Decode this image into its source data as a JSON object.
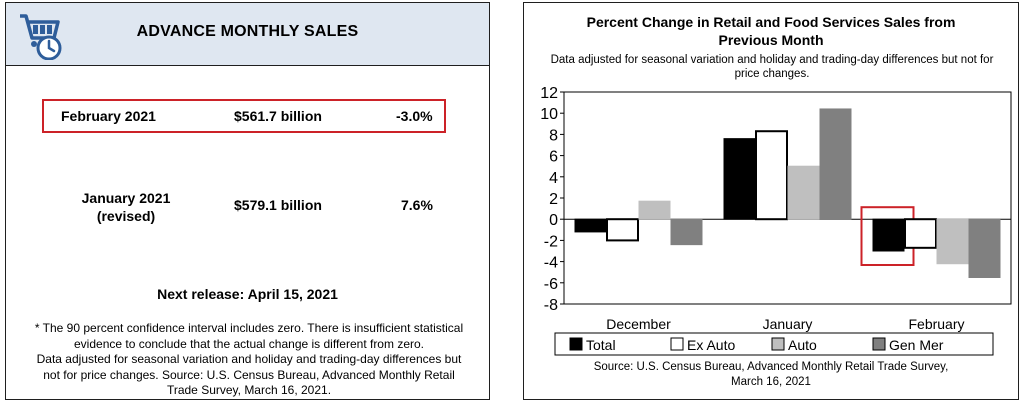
{
  "left": {
    "title": "ADVANCE MONTHLY SALES",
    "rows": [
      {
        "period": "February 2021",
        "value": "$561.7 billion",
        "change": "-3.0%"
      },
      {
        "period_line1": "January 2021",
        "period_line2": "(revised)",
        "value": "$579.1 billion",
        "change": "7.6%"
      }
    ],
    "next_release": "Next release: April 15, 2021",
    "footnote_lines": [
      "* The 90 percent confidence interval includes zero. There is insufficient statistical",
      "evidence to conclude that the actual change is different from zero.",
      "Data adjusted for seasonal variation and holiday and trading-day differences but",
      "not for price changes. Source: U.S. Census Bureau, Advanced Monthly Retail",
      "Trade Survey, March 16, 2021."
    ],
    "highlight_color": "#cc2228",
    "header_color": "#dfe7f1",
    "logo_icon": "shopping-cart-clock-icon"
  },
  "chart_data": {
    "type": "bar",
    "title_line1": "Percent Change in Retail and Food Services Sales from",
    "title_line2": "Previous Month",
    "subtitle_line1": "Data adjusted for seasonal variation and holiday and trading-day differences but not for",
    "subtitle_line2": "price changes.",
    "categories": [
      "December",
      "January",
      "February"
    ],
    "series": [
      {
        "name": "Total",
        "values": [
          -1.2,
          7.6,
          -3.0
        ],
        "fill": "#000000"
      },
      {
        "name": "Ex Auto",
        "values": [
          -2.0,
          8.3,
          -2.7
        ],
        "fill": "#ffffff"
      },
      {
        "name": "Auto",
        "values": [
          1.7,
          5.0,
          -4.2
        ],
        "fill": "#bfbfbf"
      },
      {
        "name": "Gen Mer",
        "values": [
          -2.4,
          10.4,
          -5.5
        ],
        "fill": "#808080"
      }
    ],
    "yticks": [
      "12",
      "10",
      "8",
      "6",
      "4",
      "2",
      "0",
      "-2",
      "-4",
      "-6",
      "-8"
    ],
    "ylim": [
      -8,
      12
    ],
    "xlabel": "",
    "ylabel": "",
    "legend_position": "bottom",
    "highlight": {
      "category": "February",
      "series": "Total",
      "color": "#cc2228"
    },
    "source_line1": "Source: U.S. Census Bureau, Advanced Monthly Retail Trade Survey,",
    "source_line2": "March 16, 2021"
  }
}
